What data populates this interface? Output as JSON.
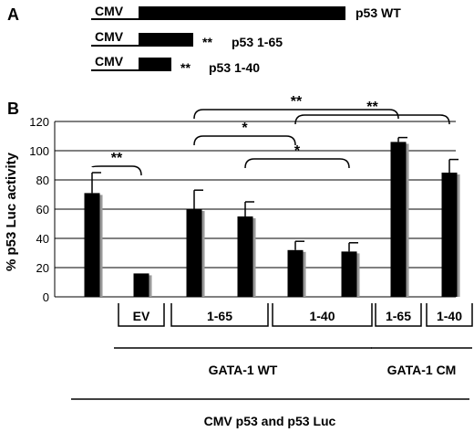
{
  "panel_a": {
    "letter": "A",
    "constructs": [
      {
        "promoter": "CMV",
        "name": "p53 WT",
        "stars": ""
      },
      {
        "promoter": "CMV",
        "name": "p53 1-65",
        "stars": "**"
      },
      {
        "promoter": "CMV",
        "name": "p53 1-40",
        "stars": "**"
      }
    ]
  },
  "panel_b": {
    "letter": "B"
  },
  "chart_data": {
    "type": "bar",
    "ylabel": "% p53 Luc activity",
    "xlabel": "",
    "ylim": [
      0,
      120
    ],
    "yticks": [
      0,
      20,
      40,
      60,
      80,
      100,
      120
    ],
    "grid": true,
    "categories": [
      "",
      "EV",
      "1-65",
      "1-65",
      "1-40",
      "1-40",
      "1-65",
      "1-40"
    ],
    "values": [
      71,
      16,
      60,
      55,
      32,
      31,
      106,
      85
    ],
    "errors": [
      14,
      0,
      13,
      10,
      6,
      6,
      3,
      9
    ],
    "bar_color": "#000000",
    "shadow_color": "#999999",
    "category_boxes": [
      {
        "label": "EV",
        "bars": [
          1,
          1
        ]
      },
      {
        "label": "1-65",
        "bars": [
          2,
          3
        ]
      },
      {
        "label": "1-40",
        "bars": [
          4,
          5
        ]
      },
      {
        "label": "1-65",
        "bars": [
          6,
          6
        ]
      },
      {
        "label": "1-40",
        "bars": [
          7,
          7
        ]
      }
    ],
    "groups": [
      {
        "label": "GATA-1 WT",
        "bars": [
          1,
          5
        ]
      },
      {
        "label": "GATA-1 CM",
        "bars": [
          6,
          7
        ]
      }
    ],
    "outer_group": {
      "label": "CMV p53 and p53 Luc",
      "bars": [
        0,
        7
      ]
    },
    "significance": [
      {
        "label": "**",
        "left_bars": [
          0
        ],
        "right_bars": [
          1
        ]
      },
      {
        "label": "*",
        "left_bars": [
          2
        ],
        "right_bars": [
          4
        ]
      },
      {
        "label": "*",
        "left_bars": [
          3
        ],
        "right_bars": [
          5
        ]
      },
      {
        "label": "**",
        "left_bars": [
          2,
          3
        ],
        "right_bars": [
          6
        ]
      },
      {
        "label": "**",
        "left_bars": [
          4,
          5
        ],
        "right_bars": [
          7
        ]
      }
    ]
  }
}
